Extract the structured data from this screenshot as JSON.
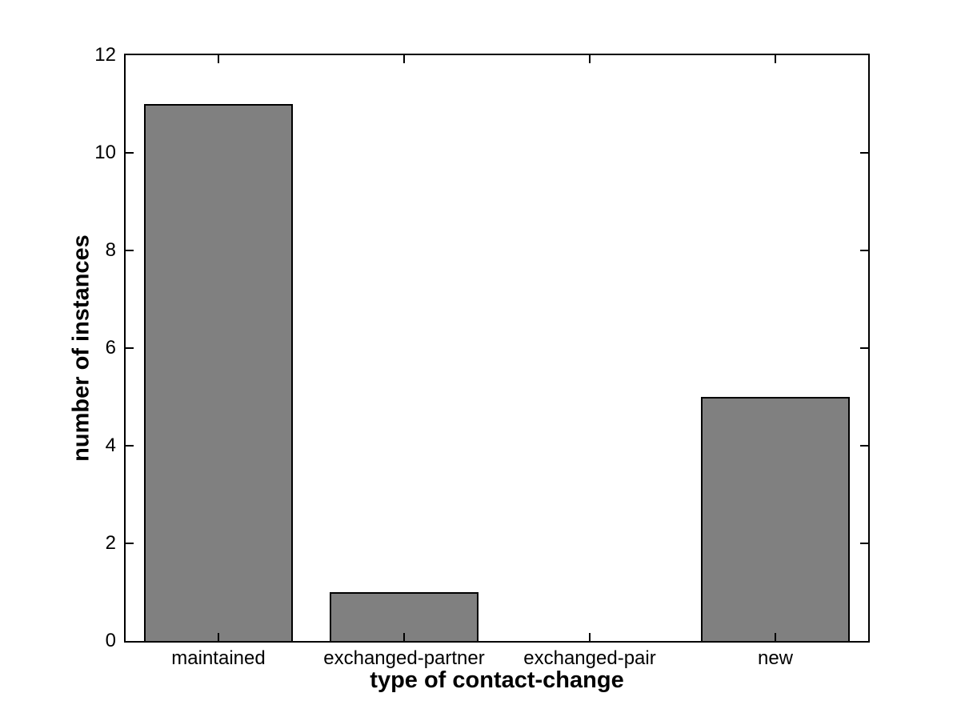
{
  "chart_data": {
    "type": "bar",
    "categories": [
      "maintained",
      "exchanged-partner",
      "exchanged-pair",
      "new"
    ],
    "values": [
      11,
      1,
      0,
      5
    ],
    "title": "",
    "xlabel": "type of contact-change",
    "ylabel": "number of instances",
    "ylim": [
      0,
      12
    ],
    "yticks": [
      0,
      2,
      4,
      6,
      8,
      10,
      12
    ],
    "bar_width_fraction": 0.8,
    "grid": false,
    "legend": null,
    "colors": {
      "bar_fill": "#808080",
      "bar_edge": "#000000",
      "axis": "#000000",
      "background": "#ffffff",
      "text": "#000000"
    }
  }
}
